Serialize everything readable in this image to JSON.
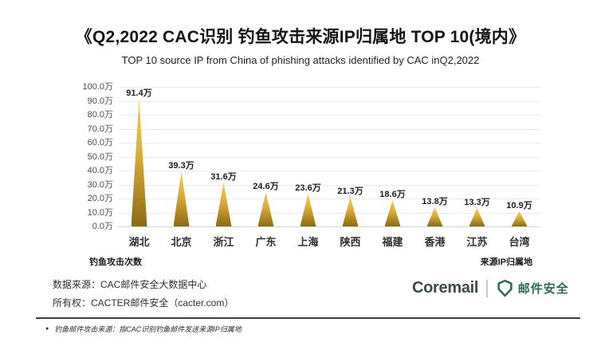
{
  "title": "《Q2,2022  CAC识别 钓鱼攻击来源IP归属地 TOP 10(境内》",
  "subtitle": "TOP 10 source IP from China of phishing attacks identified by CAC inQ2,2022",
  "chart_data": {
    "type": "bar",
    "categories": [
      "湖北",
      "北京",
      "浙江",
      "广东",
      "上海",
      "陕西",
      "福建",
      "香港",
      "江苏",
      "台湾"
    ],
    "values": [
      91.4,
      39.3,
      31.6,
      24.6,
      23.6,
      21.3,
      18.6,
      13.8,
      13.3,
      10.9
    ],
    "value_labels": [
      "91.4万",
      "39.3万",
      "31.6万",
      "24.6万",
      "23.6万",
      "21.3万",
      "18.6万",
      "13.8万",
      "13.3万",
      "10.9万"
    ],
    "unit": "万",
    "ylabel": "钓鱼攻击次数",
    "xlabel": "来源IP归属地",
    "ylim": [
      0,
      100
    ],
    "ytick_step": 10,
    "ytick_labels": [
      "100.0万",
      "90.0万",
      "80.0万",
      "70.0万",
      "60.0万",
      "50.0万",
      "40.0万",
      "30.0万",
      "20.0万",
      "10.0万",
      "0.0万"
    ],
    "grid": true,
    "legend": "none",
    "bar_color_top": "#f1ce62",
    "bar_color_bottom": "#8a6c15"
  },
  "footer": {
    "source_line1": "数据来源：CAC邮件安全大数据中心",
    "source_line2": "所有权：CACTER邮件安全（cacter.com）",
    "bullet": "●",
    "note": "钓鱼邮件攻击来源：指CAC识别钓鱼邮件发送来源IP归属地"
  },
  "logo": {
    "coremail": "Coremail",
    "brand": "邮件安全",
    "green": "#2d6a50"
  }
}
